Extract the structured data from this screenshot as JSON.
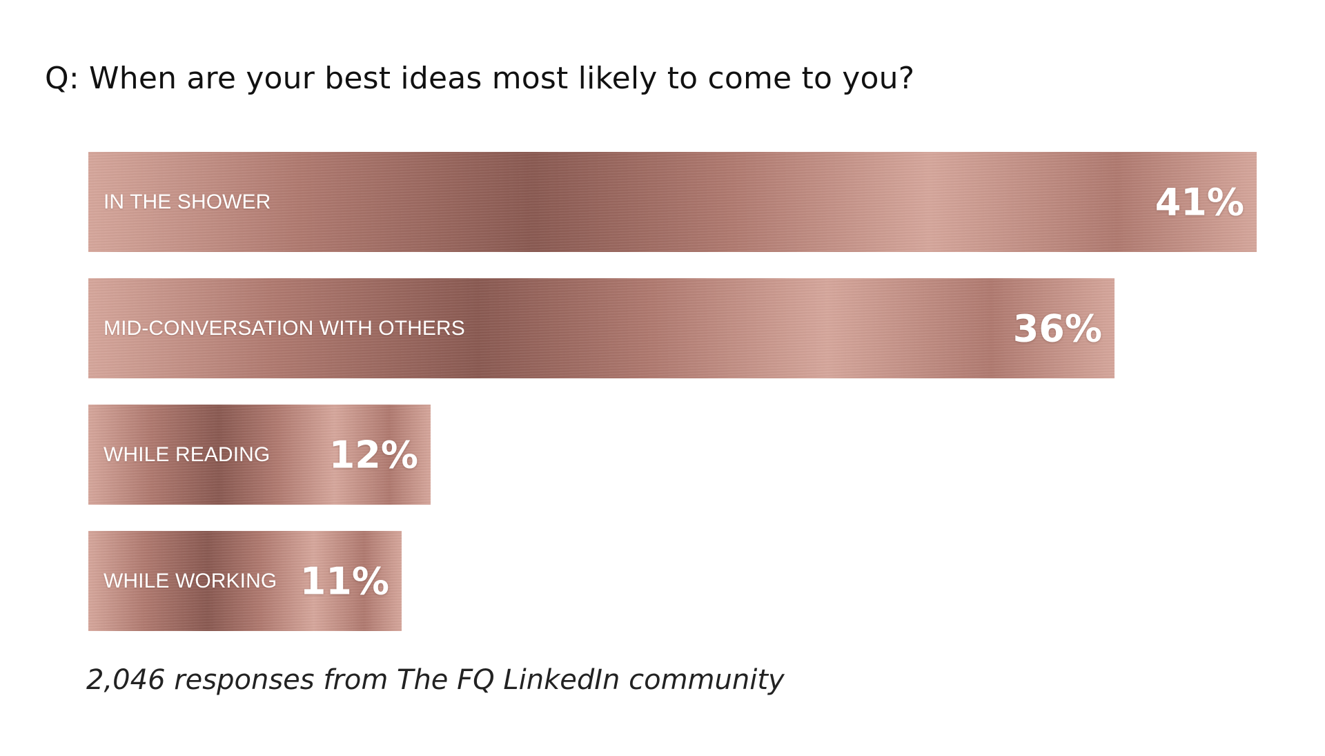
{
  "chart_data": {
    "type": "bar",
    "orientation": "horizontal",
    "title": "Q: When are your best ideas most likely to come to you?",
    "categories": [
      "IN THE SHOWER",
      "MID-CONVERSATION WITH OTHERS",
      "WHILE READING",
      "WHILE WORKING"
    ],
    "values": [
      41,
      36,
      12,
      11
    ],
    "value_labels": [
      "41%",
      "36%",
      "12%",
      "11%"
    ],
    "unit": "%",
    "xlim": [
      0,
      41
    ],
    "grid": false,
    "legend": "none",
    "footnote": "2,046 responses from The FQ LinkedIn community"
  },
  "colors": {
    "bar_base": "#b07a70",
    "bar_light": "#d6a79c",
    "bar_dark": "#8a5a52",
    "label_text": "#ffffff",
    "background": "#ffffff"
  }
}
